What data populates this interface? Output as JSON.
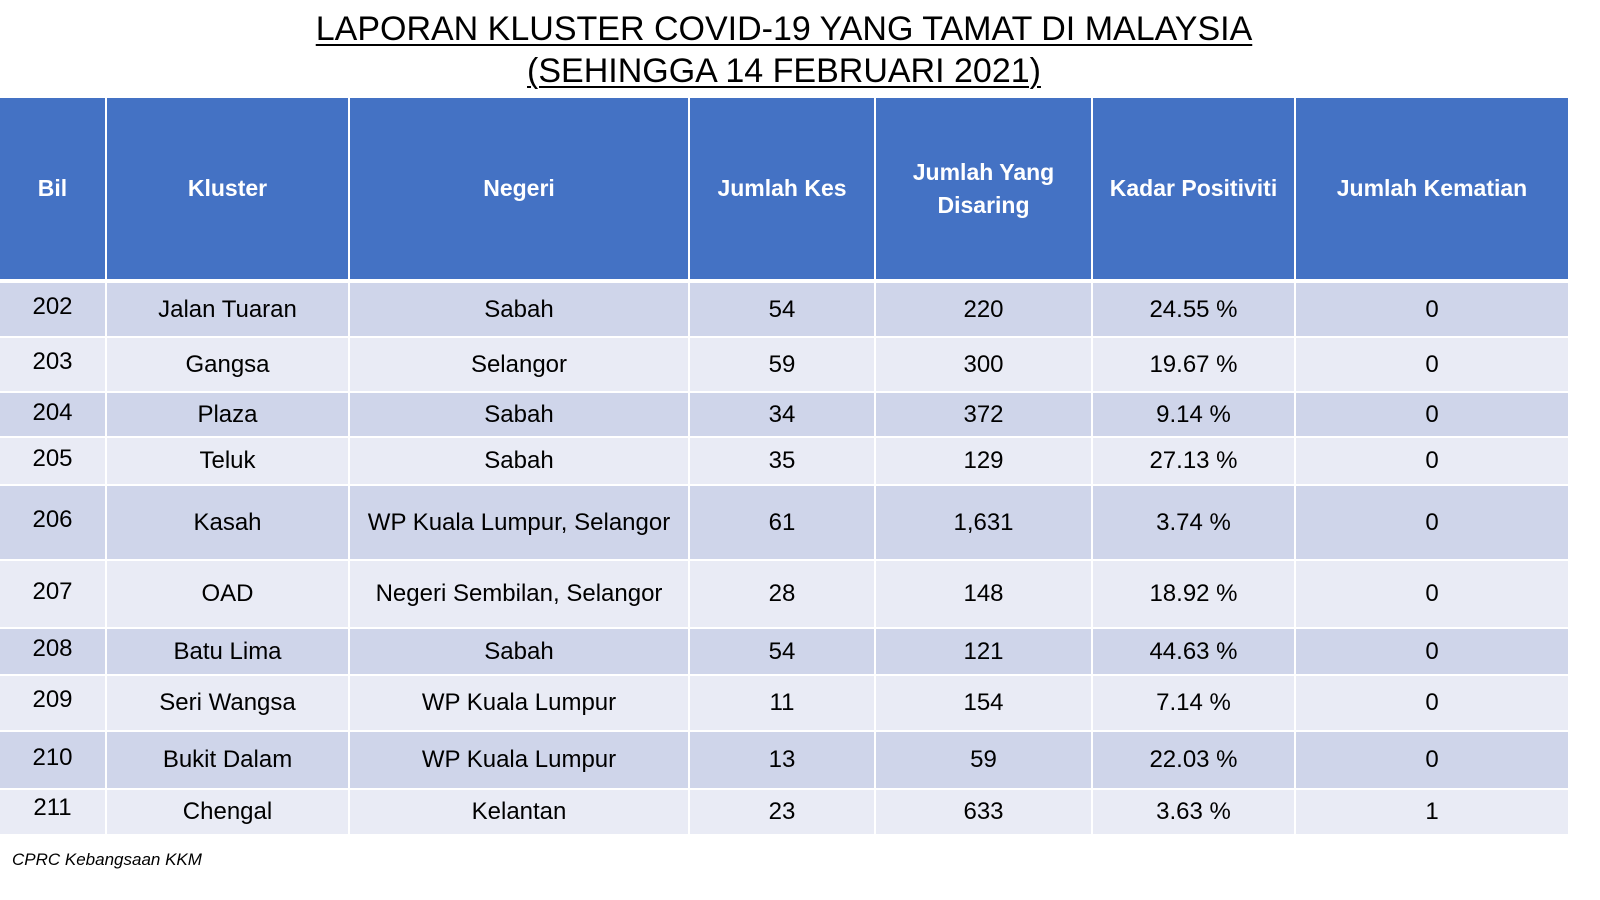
{
  "title": {
    "line1": "LAPORAN KLUSTER COVID-19 YANG TAMAT DI MALAYSIA",
    "line2": "(SEHINGGA 14 FEBRUARI 2021)"
  },
  "table": {
    "headers": {
      "bil": "Bil",
      "kluster": "Kluster",
      "negeri": "Negeri",
      "jumlah_kes": "Jumlah Kes",
      "jumlah_disaring": "Jumlah Yang Disaring",
      "kadar_positiviti": "Kadar Positiviti",
      "jumlah_kematian": "Jumlah Kematian"
    },
    "rows": [
      {
        "bil": "202",
        "kluster": "Jalan Tuaran",
        "negeri": "Sabah",
        "kes": "54",
        "disaring": "220",
        "positiviti": "24.55 %",
        "kematian": "0"
      },
      {
        "bil": "203",
        "kluster": "Gangsa",
        "negeri": "Selangor",
        "kes": "59",
        "disaring": "300",
        "positiviti": "19.67 %",
        "kematian": "0"
      },
      {
        "bil": "204",
        "kluster": "Plaza",
        "negeri": "Sabah",
        "kes": "34",
        "disaring": "372",
        "positiviti": "9.14 %",
        "kematian": "0"
      },
      {
        "bil": "205",
        "kluster": "Teluk",
        "negeri": "Sabah",
        "kes": "35",
        "disaring": "129",
        "positiviti": "27.13 %",
        "kematian": "0"
      },
      {
        "bil": "206",
        "kluster": "Kasah",
        "negeri": "WP Kuala Lumpur, Selangor",
        "kes": "61",
        "disaring": "1,631",
        "positiviti": "3.74 %",
        "kematian": "0"
      },
      {
        "bil": "207",
        "kluster": "OAD",
        "negeri": "Negeri Sembilan, Selangor",
        "kes": "28",
        "disaring": "148",
        "positiviti": "18.92 %",
        "kematian": "0"
      },
      {
        "bil": "208",
        "kluster": "Batu Lima",
        "negeri": "Sabah",
        "kes": "54",
        "disaring": "121",
        "positiviti": "44.63 %",
        "kematian": "0"
      },
      {
        "bil": "209",
        "kluster": "Seri Wangsa",
        "negeri": "WP Kuala Lumpur",
        "kes": "11",
        "disaring": "154",
        "positiviti": "7.14 %",
        "kematian": "0"
      },
      {
        "bil": "210",
        "kluster": "Bukit Dalam",
        "negeri": "WP Kuala Lumpur",
        "kes": "13",
        "disaring": "59",
        "positiviti": "22.03 %",
        "kematian": "0"
      },
      {
        "bil": "211",
        "kluster": "Chengal",
        "negeri": "Kelantan",
        "kes": "23",
        "disaring": "633",
        "positiviti": "3.63 %",
        "kematian": "1"
      }
    ]
  },
  "footer": {
    "source": "CPRC Kebangsaan KKM"
  }
}
